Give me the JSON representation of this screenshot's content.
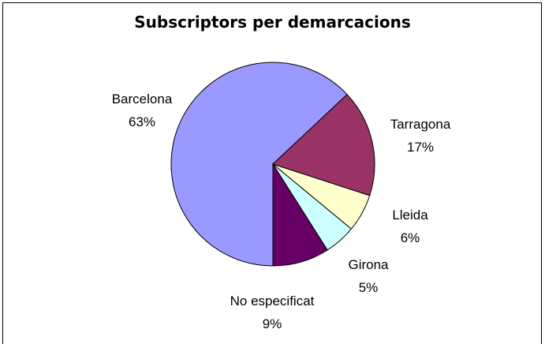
{
  "chart_data": {
    "type": "pie",
    "title": "Subscriptors per demarcacions",
    "categories": [
      "Barcelona",
      "Tarragona",
      "Lleida",
      "Girona",
      "No especificat"
    ],
    "values": [
      63,
      17,
      6,
      5,
      9
    ],
    "value_labels": [
      "63%",
      "17%",
      "6%",
      "5%",
      "9%"
    ],
    "colors": [
      "#9999ff",
      "#993366",
      "#ffffcc",
      "#ccffff",
      "#660066"
    ],
    "start_angle": 180
  }
}
